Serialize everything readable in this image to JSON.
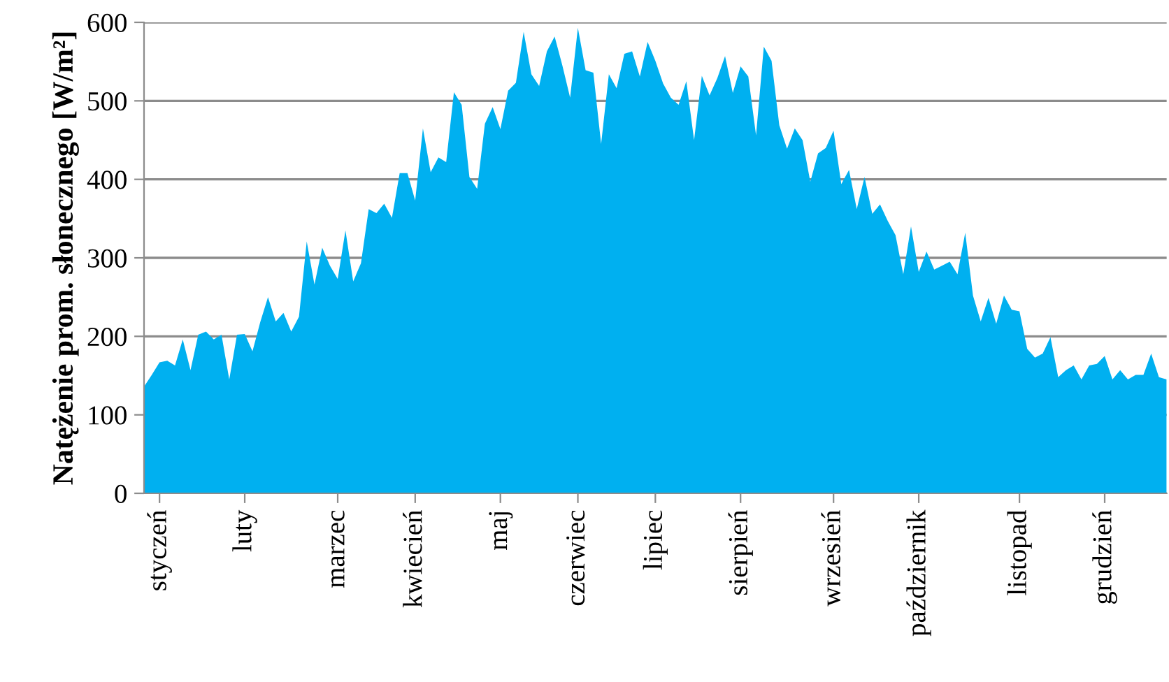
{
  "chart_data": {
    "type": "area",
    "ylabel": "Natężenie prom. słonecznego [W/m²]",
    "color": "#00b0f0",
    "categories": [
      null,
      null,
      "styczeń",
      null,
      null,
      null,
      null,
      null,
      null,
      null,
      null,
      null,
      null,
      "luty",
      null,
      null,
      null,
      null,
      null,
      null,
      null,
      null,
      null,
      null,
      null,
      "marzec",
      null,
      null,
      null,
      null,
      null,
      null,
      null,
      null,
      null,
      "kwiecień",
      null,
      null,
      null,
      null,
      null,
      null,
      null,
      null,
      null,
      null,
      "maj",
      null,
      null,
      null,
      null,
      null,
      null,
      null,
      null,
      null,
      "czerwiec",
      null,
      null,
      null,
      null,
      null,
      null,
      null,
      null,
      null,
      "lipiec",
      null,
      null,
      null,
      null,
      null,
      null,
      null,
      null,
      null,
      null,
      "sierpień",
      null,
      null,
      null,
      null,
      null,
      null,
      null,
      null,
      null,
      null,
      null,
      "wrzesień",
      null,
      null,
      null,
      null,
      null,
      null,
      null,
      null,
      null,
      null,
      "październik",
      null,
      null,
      null,
      null,
      null,
      null,
      null,
      null,
      null,
      null,
      null,
      null,
      "listopad",
      null,
      null,
      null,
      null,
      null,
      null,
      null,
      null,
      null,
      null,
      "grudzień",
      null,
      null,
      null,
      null,
      null,
      null,
      null,
      null
    ],
    "values": [
      136,
      151,
      167,
      169,
      163,
      196,
      157,
      202,
      206,
      196,
      202,
      145,
      202,
      203,
      181,
      218,
      250,
      219,
      230,
      206,
      225,
      321,
      266,
      313,
      290,
      273,
      335,
      270,
      293,
      362,
      357,
      369,
      351,
      408,
      408,
      373,
      465,
      409,
      428,
      422,
      511,
      495,
      403,
      388,
      471,
      492,
      464,
      513,
      523,
      588,
      534,
      519,
      563,
      582,
      545,
      504,
      593,
      539,
      536,
      445,
      534,
      516,
      560,
      563,
      531,
      575,
      551,
      522,
      504,
      495,
      525,
      450,
      532,
      507,
      529,
      557,
      510,
      544,
      531,
      456,
      569,
      551,
      469,
      439,
      465,
      450,
      397,
      433,
      440,
      462,
      394,
      412,
      362,
      403,
      356,
      368,
      347,
      329,
      279,
      340,
      282,
      308,
      285,
      290,
      295,
      279,
      332,
      252,
      219,
      249,
      216,
      252,
      234,
      232,
      184,
      173,
      178,
      199,
      148,
      157,
      163,
      145,
      163,
      165,
      175,
      145,
      157,
      145,
      151,
      151,
      178,
      148,
      145
    ],
    "ylim": [
      0,
      600
    ],
    "yticks": [
      0,
      100,
      200,
      300,
      400,
      500,
      600
    ],
    "grid": "y",
    "legend": false
  }
}
